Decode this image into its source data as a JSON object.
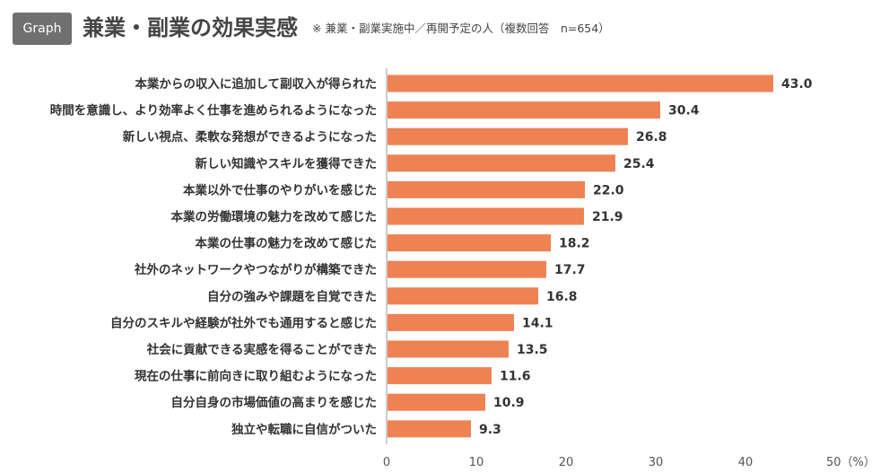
{
  "header": {
    "badge": "Graph",
    "title": "兼業・副業の効果実感",
    "note": "※ 兼業・副業実施中／再開予定の人（複数回答　n=654）"
  },
  "colors": {
    "bar": "#EE8253",
    "axis": "#999999"
  },
  "chart_data": {
    "type": "bar",
    "orientation": "horizontal",
    "categories": [
      "本業からの収入に追加して副収入が得られた",
      "時間を意識し、より効率よく仕事を進められるようになった",
      "新しい視点、柔軟な発想ができるようになった",
      "新しい知識やスキルを獲得できた",
      "本業以外で仕事のやりがいを感じた",
      "本業の労働環境の魅力を改めて感じた",
      "本業の仕事の魅力を改めて感じた",
      "社外のネットワークやつながりが構築できた",
      "自分の強みや課題を自覚できた",
      "自分のスキルや経験が社外でも通用すると感じた",
      "社会に貢献できる実感を得ることができた",
      "現在の仕事に前向きに取り組むようになった",
      "自分自身の市場価値の高まりを感じた",
      "独立や転職に自信がついた"
    ],
    "values": [
      43.0,
      30.4,
      26.8,
      25.4,
      22.0,
      21.9,
      18.2,
      17.7,
      16.8,
      14.1,
      13.5,
      11.6,
      10.9,
      9.3
    ],
    "value_labels": [
      "43.0",
      "30.4",
      "26.8",
      "25.4",
      "22.0",
      "21.9",
      "18.2",
      "17.7",
      "16.8",
      "14.1",
      "13.5",
      "11.6",
      "10.9",
      "9.3"
    ],
    "xlim": [
      0,
      50
    ],
    "xticks": [
      "0",
      "10",
      "20",
      "30",
      "40",
      "50（%）"
    ],
    "grid": false
  }
}
